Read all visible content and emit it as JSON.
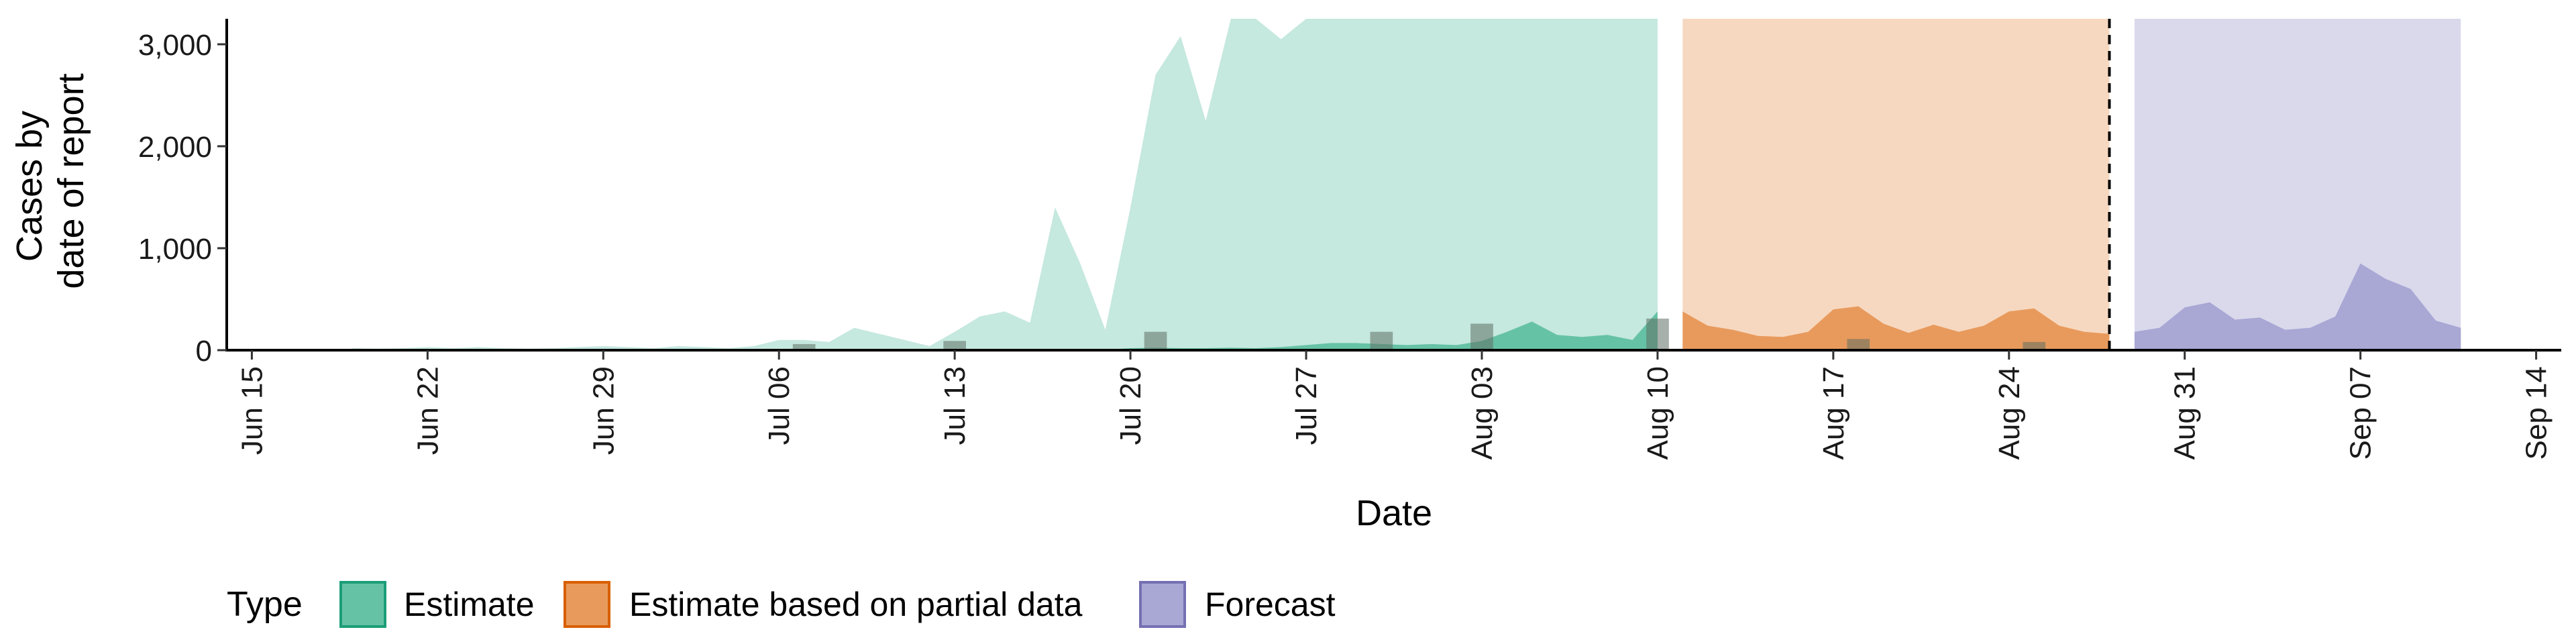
{
  "chart_data": {
    "type": "area",
    "xlabel": "Date",
    "ylabel_lines": [
      "Cases by",
      "date of report"
    ],
    "ylim": [
      0,
      3250
    ],
    "y_ticks": [
      0,
      1000,
      2000,
      3000
    ],
    "y_tick_labels": [
      "0",
      "1,000",
      "2,000",
      "3,000"
    ],
    "x_ticks": [
      "2020-06-15",
      "2020-06-22",
      "2020-06-29",
      "2020-07-06",
      "2020-07-13",
      "2020-07-20",
      "2020-07-27",
      "2020-08-03",
      "2020-08-10",
      "2020-08-17",
      "2020-08-24",
      "2020-08-31",
      "2020-09-07",
      "2020-09-14"
    ],
    "x_tick_labels": [
      "Jun 15",
      "Jun 22",
      "Jun 29",
      "Jul 06",
      "Jul 13",
      "Jul 20",
      "Jul 27",
      "Aug 03",
      "Aug 10",
      "Aug 17",
      "Aug 24",
      "Aug 31",
      "Sep 07",
      "Sep 14"
    ],
    "xlim": [
      "2020-06-14",
      "2020-09-15"
    ],
    "forecast_start_line": "2020-08-28",
    "grid": false,
    "legend": {
      "title": "Type",
      "position": "bottom",
      "entries": [
        {
          "label": "Estimate",
          "fill": "#66c2a5",
          "stroke": "#1b9e77"
        },
        {
          "label": "Estimate based on partial data",
          "fill": "#e89a5c",
          "stroke": "#d95f02"
        },
        {
          "label": "Forecast",
          "fill": "#a9a7d4",
          "stroke": "#7570b3"
        }
      ]
    },
    "series": [
      {
        "type": "Estimate",
        "color": "#1b9e77",
        "dates": [
          "2020-06-19",
          "2020-06-20",
          "2020-06-21",
          "2020-06-22",
          "2020-06-23",
          "2020-06-24",
          "2020-06-25",
          "2020-06-26",
          "2020-06-27",
          "2020-06-28",
          "2020-06-29",
          "2020-06-30",
          "2020-07-01",
          "2020-07-02",
          "2020-07-03",
          "2020-07-04",
          "2020-07-05",
          "2020-07-06",
          "2020-07-07",
          "2020-07-08",
          "2020-07-09",
          "2020-07-10",
          "2020-07-11",
          "2020-07-12",
          "2020-07-13",
          "2020-07-14",
          "2020-07-15",
          "2020-07-16",
          "2020-07-17",
          "2020-07-18",
          "2020-07-19",
          "2020-07-20",
          "2020-07-21",
          "2020-07-22",
          "2020-07-23",
          "2020-07-24",
          "2020-07-25",
          "2020-07-26",
          "2020-07-27",
          "2020-07-28",
          "2020-07-29",
          "2020-07-30",
          "2020-07-31",
          "2020-08-01",
          "2020-08-02",
          "2020-08-03",
          "2020-08-04",
          "2020-08-05",
          "2020-08-06",
          "2020-08-07",
          "2020-08-08",
          "2020-08-09",
          "2020-08-10"
        ],
        "median": [
          5,
          5,
          5,
          5,
          5,
          5,
          5,
          5,
          5,
          5,
          5,
          5,
          5,
          5,
          5,
          5,
          5,
          5,
          5,
          5,
          5,
          5,
          5,
          5,
          5,
          5,
          5,
          5,
          5,
          5,
          5,
          20,
          25,
          20,
          20,
          25,
          20,
          30,
          50,
          70,
          70,
          60,
          50,
          60,
          50,
          90,
          180,
          280,
          150,
          130,
          150,
          100,
          380
        ],
        "lower": [
          0,
          0,
          0,
          0,
          0,
          0,
          0,
          0,
          0,
          0,
          0,
          0,
          0,
          0,
          0,
          0,
          0,
          0,
          0,
          0,
          0,
          0,
          0,
          0,
          0,
          0,
          0,
          0,
          0,
          0,
          0,
          0,
          0,
          0,
          0,
          0,
          0,
          0,
          0,
          0,
          0,
          0,
          0,
          0,
          0,
          0,
          0,
          0,
          0,
          0,
          0,
          0,
          0
        ],
        "upper": [
          20,
          15,
          20,
          30,
          20,
          30,
          20,
          15,
          20,
          30,
          40,
          30,
          20,
          40,
          30,
          20,
          40,
          100,
          100,
          80,
          220,
          160,
          100,
          40,
          180,
          330,
          380,
          270,
          1400,
          850,
          200,
          1400,
          2700,
          3080,
          2250,
          3250,
          3250,
          3050,
          3250,
          3250,
          3250,
          3250,
          3250,
          3250,
          3250,
          3250,
          3250,
          3250,
          3250,
          3250,
          3250,
          3250,
          3250
        ]
      },
      {
        "type": "Estimate based on partial data",
        "color": "#d95f02",
        "dates": [
          "2020-08-11",
          "2020-08-12",
          "2020-08-13",
          "2020-08-14",
          "2020-08-15",
          "2020-08-16",
          "2020-08-17",
          "2020-08-18",
          "2020-08-19",
          "2020-08-20",
          "2020-08-21",
          "2020-08-22",
          "2020-08-23",
          "2020-08-24",
          "2020-08-25",
          "2020-08-26",
          "2020-08-27",
          "2020-08-28"
        ],
        "median": [
          380,
          240,
          200,
          140,
          130,
          180,
          400,
          430,
          260,
          170,
          250,
          180,
          240,
          380,
          410,
          240,
          180,
          160
        ],
        "lower": [
          0,
          0,
          0,
          0,
          0,
          0,
          0,
          0,
          0,
          0,
          0,
          0,
          0,
          0,
          0,
          0,
          0,
          0
        ],
        "upper": [
          3250,
          3250,
          3250,
          3250,
          3250,
          3250,
          3250,
          3250,
          3250,
          3250,
          3250,
          3250,
          3250,
          3250,
          3250,
          3250,
          3250,
          3250
        ]
      },
      {
        "type": "Forecast",
        "color": "#7570b3",
        "dates": [
          "2020-08-29",
          "2020-08-30",
          "2020-08-31",
          "2020-09-01",
          "2020-09-02",
          "2020-09-03",
          "2020-09-04",
          "2020-09-05",
          "2020-09-06",
          "2020-09-07",
          "2020-09-08",
          "2020-09-09",
          "2020-09-10",
          "2020-09-11"
        ],
        "median": [
          180,
          220,
          420,
          470,
          300,
          320,
          200,
          220,
          330,
          850,
          700,
          600,
          290,
          220
        ],
        "lower": [
          0,
          0,
          0,
          0,
          0,
          0,
          0,
          0,
          0,
          0,
          0,
          0,
          0,
          0
        ],
        "upper": [
          3250,
          3250,
          3250,
          3250,
          3250,
          3250,
          3250,
          3250,
          3250,
          3250,
          3250,
          3250,
          3250,
          3250
        ]
      }
    ],
    "observed_bars": {
      "color": "#5f6f65",
      "dates": [
        "2020-07-07",
        "2020-07-13",
        "2020-07-21",
        "2020-07-30",
        "2020-08-03",
        "2020-08-10",
        "2020-08-18",
        "2020-08-25"
      ],
      "values": [
        60,
        90,
        180,
        180,
        260,
        310,
        110,
        80
      ]
    }
  }
}
